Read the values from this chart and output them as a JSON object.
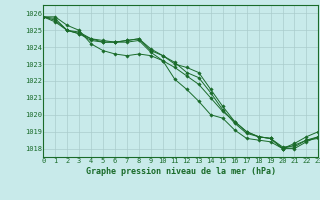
{
  "title": "Graphe pression niveau de la mer (hPa)",
  "background_color": "#c8eaea",
  "grid_color": "#aacccc",
  "line_color": "#1a6b2a",
  "marker_color": "#1a6b2a",
  "xlim": [
    0,
    23
  ],
  "ylim": [
    1017.5,
    1026.5
  ],
  "yticks": [
    1018,
    1019,
    1020,
    1021,
    1022,
    1023,
    1024,
    1025,
    1026
  ],
  "xticks": [
    0,
    1,
    2,
    3,
    4,
    5,
    6,
    7,
    8,
    9,
    10,
    11,
    12,
    13,
    14,
    15,
    16,
    17,
    18,
    19,
    20,
    21,
    22,
    23
  ],
  "series": [
    [
      1025.8,
      1025.8,
      1025.3,
      1025.0,
      1024.2,
      1023.8,
      1023.6,
      1023.5,
      1023.6,
      1023.5,
      1023.2,
      1022.1,
      1021.5,
      1020.8,
      1020.0,
      1019.8,
      1019.1,
      1018.6,
      1018.5,
      1018.4,
      1018.0,
      1018.2,
      1018.5,
      1018.6
    ],
    [
      1025.8,
      1025.7,
      1025.0,
      1024.8,
      1024.5,
      1024.3,
      1024.3,
      1024.3,
      1024.4,
      1023.7,
      1023.2,
      1022.8,
      1022.3,
      1021.8,
      1021.0,
      1020.2,
      1019.6,
      1019.0,
      1018.7,
      1018.6,
      1018.1,
      1018.1,
      1018.5,
      1018.7
    ],
    [
      1025.8,
      1025.6,
      1025.0,
      1024.9,
      1024.5,
      1024.4,
      1024.3,
      1024.4,
      1024.5,
      1023.8,
      1023.5,
      1023.1,
      1022.5,
      1022.2,
      1021.3,
      1020.3,
      1019.5,
      1018.9,
      1018.7,
      1018.6,
      1018.0,
      1018.0,
      1018.4,
      1018.7
    ],
    [
      1025.8,
      1025.5,
      1025.0,
      1024.8,
      1024.4,
      1024.3,
      1024.3,
      1024.4,
      1024.5,
      1023.9,
      1023.5,
      1023.0,
      1022.8,
      1022.5,
      1021.5,
      1020.5,
      1019.6,
      1019.0,
      1018.7,
      1018.6,
      1018.0,
      1018.3,
      1018.7,
      1019.0
    ]
  ]
}
